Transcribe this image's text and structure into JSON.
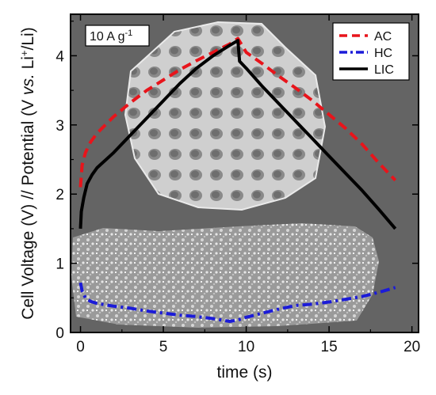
{
  "chart_data": {
    "type": "line",
    "annotation": "10 A g",
    "annotation_sup": "-1",
    "xlabel": "time (s)",
    "ylabel_parts": [
      "Cell Voltage (V) // Potential (V ",
      "vs.",
      " Li",
      "+",
      "/Li)"
    ],
    "xlim": [
      -0.6,
      20.4
    ],
    "ylim": [
      0,
      4.6
    ],
    "xticks": [
      0,
      5,
      10,
      15,
      20
    ],
    "yticks": [
      0,
      1,
      2,
      3,
      4
    ],
    "grid": false,
    "legend_position": "top-right",
    "background": "SEM micrograph images of carbon materials",
    "series": [
      {
        "name": "AC",
        "color": "#e8141b",
        "dash": "dashed",
        "x": [
          0,
          0.1,
          0.3,
          0.6,
          1.0,
          1.5,
          2.0,
          3.0,
          4.0,
          5.0,
          6.0,
          7.0,
          8.0,
          9.0,
          9.5,
          10.0,
          11.0,
          12.0,
          13.0,
          14.0,
          15.0,
          16.0,
          17.0,
          18.0,
          19.0
        ],
        "y": [
          2.1,
          2.42,
          2.6,
          2.75,
          2.88,
          3.0,
          3.12,
          3.32,
          3.5,
          3.65,
          3.8,
          3.93,
          4.05,
          4.17,
          4.25,
          4.05,
          3.88,
          3.7,
          3.53,
          3.35,
          3.15,
          2.95,
          2.72,
          2.45,
          2.2
        ]
      },
      {
        "name": "HC",
        "color": "#1b1bd8",
        "dash": "dashdot",
        "x": [
          0,
          0.1,
          0.3,
          0.6,
          1.0,
          2.0,
          3.0,
          4.0,
          5.0,
          6.0,
          7.0,
          8.0,
          9.0,
          9.5,
          10.0,
          11.0,
          12.0,
          13.0,
          14.0,
          15.0,
          16.0,
          17.0,
          18.0,
          19.0
        ],
        "y": [
          0.72,
          0.6,
          0.5,
          0.45,
          0.42,
          0.38,
          0.35,
          0.31,
          0.28,
          0.25,
          0.23,
          0.2,
          0.16,
          0.18,
          0.22,
          0.28,
          0.34,
          0.39,
          0.41,
          0.44,
          0.48,
          0.52,
          0.58,
          0.65
        ]
      },
      {
        "name": "LIC",
        "color": "#000000",
        "dash": "solid",
        "x": [
          0,
          0.05,
          0.2,
          0.4,
          0.7,
          1.0,
          2.0,
          3.0,
          4.0,
          5.0,
          6.0,
          7.0,
          8.0,
          9.0,
          9.5,
          9.6,
          10.0,
          11.0,
          12.0,
          13.0,
          14.0,
          15.0,
          16.0,
          17.0,
          18.0,
          19.0
        ],
        "y": [
          1.5,
          1.75,
          1.95,
          2.15,
          2.28,
          2.38,
          2.6,
          2.85,
          3.1,
          3.35,
          3.6,
          3.82,
          4.0,
          4.15,
          4.22,
          3.92,
          3.82,
          3.55,
          3.3,
          3.05,
          2.8,
          2.55,
          2.3,
          2.05,
          1.78,
          1.5
        ]
      }
    ]
  }
}
